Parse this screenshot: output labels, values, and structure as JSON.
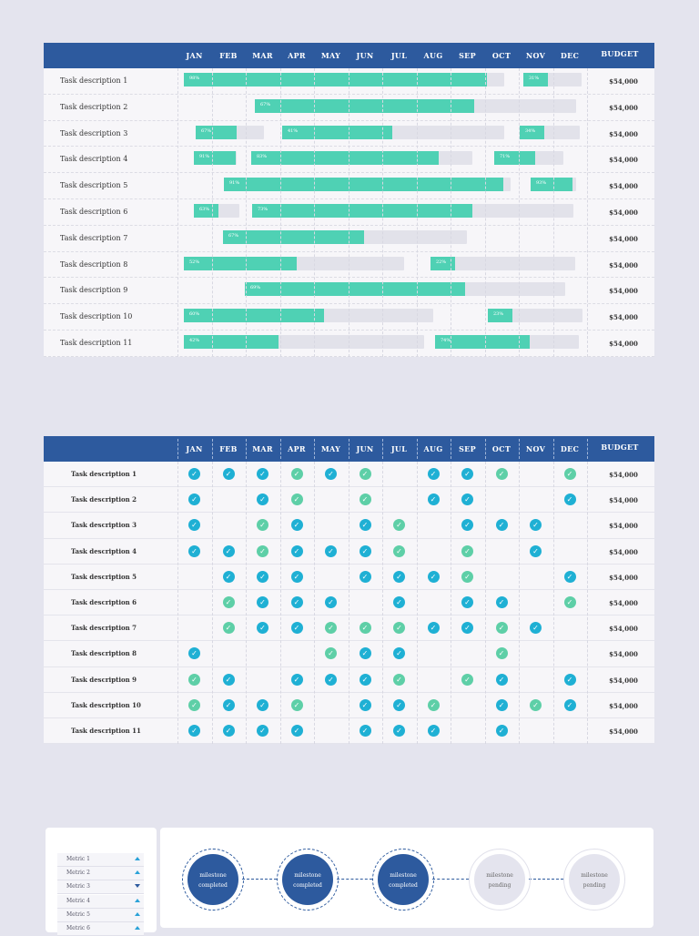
{
  "months": [
    "JAN",
    "FEB",
    "MAR",
    "APR",
    "MAY",
    "JUN",
    "JUL",
    "AUG",
    "SEP",
    "OCT",
    "NOV",
    "DEC"
  ],
  "budget_header": "BUDGET",
  "gantt": {
    "rows": [
      {
        "label": "Task description 1",
        "budget": "$54,000",
        "bars": [
          {
            "pct_label": "98%"
          },
          {
            "pct_label": "31%"
          }
        ]
      },
      {
        "label": "Task description 2",
        "budget": "$54,000",
        "bars": [
          {
            "pct_label": "67%"
          }
        ]
      },
      {
        "label": "Task description 3",
        "budget": "$54,000",
        "bars": [
          {
            "pct_label": "67%"
          },
          {
            "pct_label": "41%"
          },
          {
            "pct_label": "34%"
          }
        ]
      },
      {
        "label": "Task description 4",
        "budget": "$54,000",
        "bars": [
          {
            "pct_label": "91%"
          },
          {
            "pct_label": "83%"
          },
          {
            "pct_label": "71%"
          }
        ]
      },
      {
        "label": "Task description 5",
        "budget": "$54,000",
        "bars": [
          {
            "pct_label": "91%"
          },
          {
            "pct_label": "93%"
          }
        ]
      },
      {
        "label": "Task description 6",
        "budget": "$54,000",
        "bars": [
          {
            "pct_label": "63%"
          },
          {
            "pct_label": "73%"
          }
        ]
      },
      {
        "label": "Task description 7",
        "budget": "$54,000",
        "bars": [
          {
            "pct_label": "67%"
          }
        ]
      },
      {
        "label": "Task description 8",
        "budget": "$54,000",
        "bars": [
          {
            "pct_label": "52%"
          },
          {
            "pct_label": "22%"
          }
        ]
      },
      {
        "label": "Task description 9",
        "budget": "$54,000",
        "bars": [
          {
            "pct_label": "69%"
          }
        ]
      },
      {
        "label": "Task description 10",
        "budget": "$54,000",
        "bars": [
          {
            "pct_label": "60%"
          },
          {
            "pct_label": "23%"
          }
        ]
      },
      {
        "label": "Task description 11",
        "budget": "$54,000",
        "bars": [
          {
            "pct_label": "42%"
          },
          {
            "pct_label": "74%"
          }
        ]
      }
    ]
  },
  "milestones": {
    "rows": [
      {
        "label": "Task description 1",
        "budget": "$54,000",
        "cells": [
          "d",
          "d",
          "d",
          "p",
          "d",
          "p",
          "",
          "d",
          "d",
          "p",
          "",
          "p"
        ]
      },
      {
        "label": "Task description 2",
        "budget": "$54,000",
        "cells": [
          "d",
          "",
          "d",
          "p",
          "",
          "p",
          "",
          "d",
          "d",
          "",
          "",
          "d"
        ]
      },
      {
        "label": "Task description 3",
        "budget": "$54,000",
        "cells": [
          "d",
          "",
          "p",
          "d",
          "",
          "d",
          "p",
          "",
          "d",
          "d",
          "d",
          ""
        ]
      },
      {
        "label": "Task description 4",
        "budget": "$54,000",
        "cells": [
          "d",
          "d",
          "p",
          "d",
          "d",
          "d",
          "p",
          "",
          "p",
          "",
          "d",
          ""
        ]
      },
      {
        "label": "Task description 5",
        "budget": "$54,000",
        "cells": [
          "",
          "d",
          "d",
          "d",
          "",
          "d",
          "d",
          "d",
          "p",
          "",
          "",
          "d"
        ]
      },
      {
        "label": "Task description 6",
        "budget": "$54,000",
        "cells": [
          "",
          "p",
          "d",
          "d",
          "d",
          "",
          "d",
          "",
          "d",
          "d",
          "",
          "p"
        ]
      },
      {
        "label": "Task description 7",
        "budget": "$54,000",
        "cells": [
          "",
          "p",
          "d",
          "d",
          "p",
          "p",
          "p",
          "d",
          "d",
          "p",
          "d",
          ""
        ]
      },
      {
        "label": "Task description 8",
        "budget": "$54,000",
        "cells": [
          "d",
          "",
          "",
          "",
          "p",
          "d",
          "d",
          "",
          "",
          "p",
          "",
          ""
        ]
      },
      {
        "label": "Task description 9",
        "budget": "$54,000",
        "cells": [
          "p",
          "d",
          "",
          "d",
          "d",
          "d",
          "p",
          "",
          "p",
          "d",
          "",
          "d"
        ]
      },
      {
        "label": "Task description 10",
        "budget": "$54,000",
        "cells": [
          "p",
          "d",
          "d",
          "p",
          "",
          "d",
          "d",
          "p",
          "",
          "d",
          "p",
          "d"
        ]
      },
      {
        "label": "Task description 11",
        "budget": "$54,000",
        "cells": [
          "d",
          "d",
          "d",
          "d",
          "",
          "d",
          "d",
          "d",
          "",
          "d",
          "",
          ""
        ]
      }
    ]
  },
  "metrics": [
    {
      "label": "Metric 1",
      "trend": "up"
    },
    {
      "label": "Metric 2",
      "trend": "up"
    },
    {
      "label": "Metric 3",
      "trend": "down"
    },
    {
      "label": "Metric 4",
      "trend": "up"
    },
    {
      "label": "Metric 5",
      "trend": "up"
    },
    {
      "label": "Metric 6",
      "trend": "up"
    }
  ],
  "milestone_path": [
    {
      "line1": "milestone",
      "line2": "completed",
      "state": "completed"
    },
    {
      "line1": "milestone",
      "line2": "completed",
      "state": "completed"
    },
    {
      "line1": "milestone",
      "line2": "completed",
      "state": "completed"
    },
    {
      "line1": "milestone",
      "line2": "pending",
      "state": "pending"
    },
    {
      "line1": "milestone",
      "line2": "pending",
      "state": "pending"
    }
  ],
  "colors": {
    "header": "#2d5a9e",
    "bar": "#4fd1b4",
    "track": "#e2e2ea",
    "check_done": "#1fb0d4",
    "check_partial": "#5ecfa7"
  }
}
